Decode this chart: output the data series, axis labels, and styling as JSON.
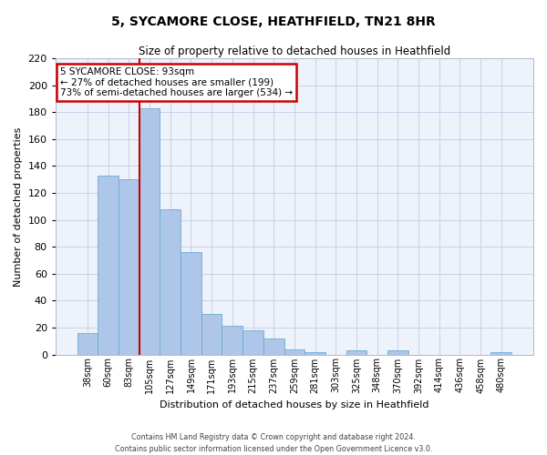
{
  "title": "5, SYCAMORE CLOSE, HEATHFIELD, TN21 8HR",
  "subtitle": "Size of property relative to detached houses in Heathfield",
  "xlabel": "Distribution of detached houses by size in Heathfield",
  "ylabel": "Number of detached properties",
  "bar_labels": [
    "38sqm",
    "60sqm",
    "83sqm",
    "105sqm",
    "127sqm",
    "149sqm",
    "171sqm",
    "193sqm",
    "215sqm",
    "237sqm",
    "259sqm",
    "281sqm",
    "303sqm",
    "325sqm",
    "348sqm",
    "370sqm",
    "392sqm",
    "414sqm",
    "436sqm",
    "458sqm",
    "480sqm"
  ],
  "bar_values": [
    16,
    133,
    130,
    183,
    108,
    76,
    30,
    21,
    18,
    12,
    4,
    2,
    0,
    3,
    0,
    3,
    0,
    0,
    0,
    0,
    2
  ],
  "bar_color": "#aec6e8",
  "bar_edge_color": "#6aaad4",
  "ylim": [
    0,
    220
  ],
  "yticks": [
    0,
    20,
    40,
    60,
    80,
    100,
    120,
    140,
    160,
    180,
    200,
    220
  ],
  "vline_x": 2.5,
  "vline_color": "#cc0000",
  "annotation_title": "5 SYCAMORE CLOSE: 93sqm",
  "annotation_line1": "← 27% of detached houses are smaller (199)",
  "annotation_line2": "73% of semi-detached houses are larger (534) →",
  "annotation_box_color": "#ffffff",
  "annotation_box_edge": "#cc0000",
  "background_color": "#eef2fb",
  "grid_color": "#c8d0e8",
  "footer_line1": "Contains HM Land Registry data © Crown copyright and database right 2024.",
  "footer_line2": "Contains public sector information licensed under the Open Government Licence v3.0."
}
